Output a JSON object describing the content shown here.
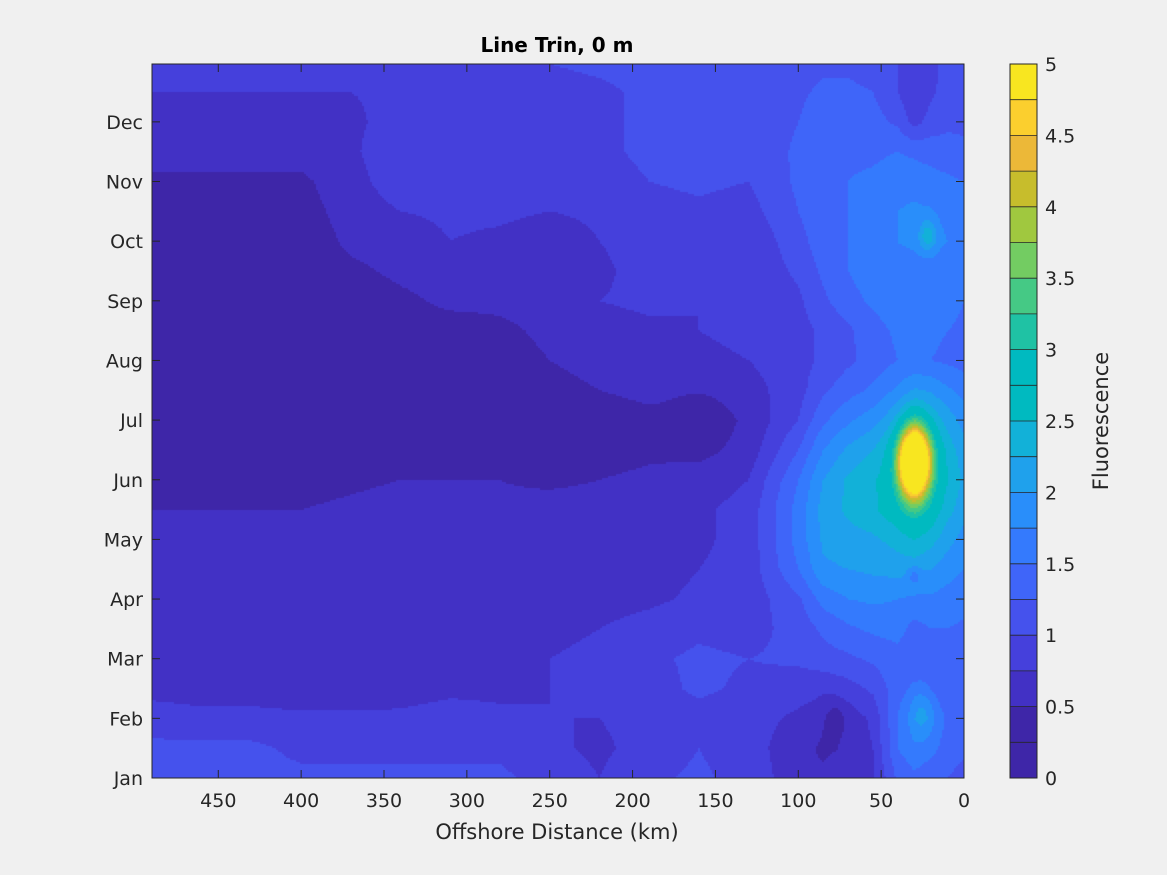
{
  "chart_data": {
    "type": "heatmap",
    "subtype": "filled-contour",
    "title": "Line Trin, 0 m",
    "xlabel": "Offshore Distance (km)",
    "ylabel": "",
    "x_axis": {
      "reversed": true,
      "range": [
        490,
        0
      ],
      "ticks": [
        450,
        400,
        350,
        300,
        250,
        200,
        150,
        100,
        50,
        0
      ],
      "tick_labels": [
        "450",
        "400",
        "350",
        "300",
        "250",
        "200",
        "150",
        "100",
        "50",
        "0"
      ]
    },
    "y_axis": {
      "ticks": [
        1,
        2,
        3,
        4,
        5,
        6,
        7,
        8,
        9,
        10,
        11,
        12
      ],
      "tick_labels": [
        "Jan",
        "Feb",
        "Mar",
        "Apr",
        "May",
        "Jun",
        "Jul",
        "Aug",
        "Sep",
        "Oct",
        "Nov",
        "Dec"
      ],
      "range": [
        1,
        12.97
      ]
    },
    "colorbar": {
      "label": "Fluorescence",
      "range": [
        0,
        5
      ],
      "ticks": [
        0,
        0.5,
        1,
        1.5,
        2,
        2.5,
        3,
        3.5,
        4,
        4.5,
        5
      ],
      "tick_labels": [
        "0",
        "0.5",
        "1",
        "1.5",
        "2",
        "2.5",
        "3",
        "3.5",
        "4",
        "4.5",
        "5"
      ],
      "level_step": 0.25,
      "colormap": "parula",
      "colors": [
        "#3e26a8",
        "#4231c5",
        "#4540dc",
        "#4552ed",
        "#3f65f9",
        "#347afd",
        "#298efa",
        "#1fa1ec",
        "#12b1d8",
        "#00bac0",
        "#1fc2a4",
        "#45c985",
        "#73cc62",
        "#a0c83f",
        "#c7bd2c",
        "#ecb838",
        "#fbcf2e",
        "#f8e620"
      ]
    },
    "grid": false,
    "data": {
      "x": [
        490,
        460,
        430,
        400,
        370,
        340,
        310,
        280,
        250,
        220,
        190,
        160,
        130,
        100,
        85,
        70,
        55,
        40,
        30,
        20,
        10,
        0
      ],
      "y": [
        1,
        1.5,
        2,
        2.5,
        3,
        3.5,
        4,
        4.5,
        5,
        5.5,
        6,
        6.5,
        7,
        7.5,
        8,
        8.5,
        9,
        9.5,
        10,
        10.5,
        11,
        11.5,
        12,
        12.5,
        12.97
      ],
      "base_field_description": "values estimated from contour bands",
      "field": [
        [
          1.05,
          1.05,
          1.05,
          1.05,
          1.05,
          1.05,
          1.05,
          1.05,
          0.9,
          0.75,
          0.95,
          1.05,
          0.9,
          0.6,
          0.55,
          0.65,
          0.7,
          1.3,
          1.45,
          1.35,
          1.25,
          1.15
        ],
        [
          1.05,
          1.05,
          1.05,
          0.95,
          0.95,
          0.95,
          0.95,
          0.95,
          0.8,
          0.7,
          0.85,
          1.0,
          0.85,
          0.6,
          0.45,
          0.55,
          0.75,
          1.5,
          1.65,
          1.55,
          1.4,
          1.3
        ],
        [
          0.9,
          0.85,
          0.85,
          0.8,
          0.8,
          0.8,
          0.85,
          0.8,
          0.75,
          0.75,
          0.85,
          0.9,
          0.85,
          0.7,
          0.6,
          0.6,
          0.8,
          1.5,
          1.7,
          1.6,
          1.45,
          1.35
        ],
        [
          0.65,
          0.6,
          0.6,
          0.6,
          0.6,
          0.65,
          0.7,
          0.7,
          0.75,
          0.8,
          0.9,
          1.05,
          0.95,
          0.85,
          0.8,
          0.9,
          1.05,
          1.4,
          1.45,
          1.35,
          1.3,
          1.25
        ],
        [
          0.6,
          0.6,
          0.6,
          0.6,
          0.6,
          0.6,
          0.6,
          0.65,
          0.75,
          0.8,
          0.95,
          1.05,
          1.0,
          1.05,
          1.15,
          1.2,
          1.3,
          1.4,
          1.3,
          1.35,
          1.35,
          1.3
        ],
        [
          0.6,
          0.6,
          0.6,
          0.6,
          0.6,
          0.6,
          0.55,
          0.6,
          0.7,
          0.75,
          0.85,
          0.95,
          0.9,
          1.1,
          1.3,
          1.45,
          1.55,
          1.6,
          1.4,
          1.5,
          1.5,
          1.45
        ],
        [
          0.6,
          0.6,
          0.6,
          0.6,
          0.6,
          0.6,
          0.55,
          0.55,
          0.6,
          0.65,
          0.7,
          0.8,
          0.85,
          1.2,
          1.6,
          1.75,
          1.8,
          1.75,
          1.7,
          1.7,
          1.65,
          1.6
        ],
        [
          0.6,
          0.6,
          0.6,
          0.6,
          0.6,
          0.6,
          0.6,
          0.6,
          0.6,
          0.6,
          0.65,
          0.75,
          0.85,
          1.5,
          1.95,
          2.0,
          2.05,
          2.1,
          2.1,
          2.0,
          1.85,
          1.75
        ],
        [
          0.6,
          0.6,
          0.6,
          0.6,
          0.6,
          0.6,
          0.6,
          0.6,
          0.6,
          0.6,
          0.6,
          0.7,
          0.85,
          1.6,
          2.05,
          2.15,
          2.2,
          2.35,
          2.5,
          2.35,
          2.1,
          1.9
        ],
        [
          0.5,
          0.5,
          0.5,
          0.5,
          0.55,
          0.6,
          0.55,
          0.55,
          0.6,
          0.6,
          0.6,
          0.7,
          0.85,
          1.6,
          2.1,
          2.3,
          2.45,
          2.7,
          2.9,
          2.7,
          2.35,
          2.1
        ],
        [
          0.4,
          0.4,
          0.4,
          0.4,
          0.45,
          0.5,
          0.5,
          0.5,
          0.45,
          0.5,
          0.55,
          0.6,
          0.75,
          1.5,
          2.0,
          2.3,
          2.45,
          2.75,
          3.0,
          2.85,
          2.5,
          2.2
        ],
        [
          0.35,
          0.35,
          0.35,
          0.35,
          0.35,
          0.35,
          0.35,
          0.35,
          0.35,
          0.4,
          0.45,
          0.45,
          0.6,
          1.25,
          1.75,
          2.05,
          2.25,
          2.6,
          2.9,
          2.75,
          2.4,
          2.1
        ],
        [
          0.35,
          0.35,
          0.35,
          0.35,
          0.35,
          0.35,
          0.35,
          0.35,
          0.35,
          0.4,
          0.45,
          0.4,
          0.55,
          1.0,
          1.45,
          1.7,
          1.9,
          2.2,
          2.5,
          2.4,
          2.15,
          1.9
        ],
        [
          0.35,
          0.35,
          0.35,
          0.35,
          0.35,
          0.35,
          0.35,
          0.35,
          0.4,
          0.5,
          0.55,
          0.6,
          0.65,
          0.9,
          1.2,
          1.4,
          1.55,
          1.8,
          2.0,
          1.95,
          1.8,
          1.65
        ],
        [
          0.35,
          0.35,
          0.35,
          0.35,
          0.35,
          0.35,
          0.35,
          0.4,
          0.5,
          0.6,
          0.7,
          0.7,
          0.75,
          0.9,
          1.05,
          1.2,
          1.35,
          1.5,
          1.55,
          1.5,
          1.45,
          1.4
        ],
        [
          0.35,
          0.35,
          0.35,
          0.35,
          0.35,
          0.4,
          0.4,
          0.45,
          0.55,
          0.65,
          0.7,
          0.75,
          0.8,
          0.9,
          1.05,
          1.2,
          1.4,
          1.55,
          1.55,
          1.55,
          1.5,
          1.45
        ],
        [
          0.35,
          0.35,
          0.35,
          0.35,
          0.35,
          0.45,
          0.55,
          0.55,
          0.6,
          0.75,
          0.8,
          0.75,
          0.8,
          0.95,
          1.2,
          1.4,
          1.55,
          1.65,
          1.6,
          1.65,
          1.6,
          1.5
        ],
        [
          0.35,
          0.35,
          0.35,
          0.35,
          0.45,
          0.55,
          0.6,
          0.55,
          0.55,
          0.7,
          0.85,
          0.8,
          0.8,
          1.05,
          1.3,
          1.5,
          1.65,
          1.7,
          1.6,
          1.6,
          1.55,
          1.5
        ],
        [
          0.35,
          0.35,
          0.35,
          0.35,
          0.55,
          0.6,
          0.75,
          0.7,
          0.6,
          0.75,
          0.85,
          0.85,
          0.8,
          1.15,
          1.4,
          1.5,
          1.6,
          1.75,
          1.8,
          1.85,
          1.75,
          1.6
        ],
        [
          0.4,
          0.4,
          0.4,
          0.4,
          0.6,
          0.75,
          0.8,
          0.8,
          0.75,
          0.8,
          0.9,
          0.95,
          0.9,
          1.25,
          1.45,
          1.5,
          1.6,
          1.75,
          1.8,
          1.75,
          1.65,
          1.55
        ],
        [
          0.45,
          0.45,
          0.45,
          0.45,
          0.65,
          0.9,
          0.95,
          0.9,
          0.85,
          0.9,
          1.0,
          1.05,
          1.0,
          1.3,
          1.5,
          1.5,
          1.55,
          1.65,
          1.65,
          1.6,
          1.55,
          1.5
        ],
        [
          0.6,
          0.6,
          0.6,
          0.6,
          0.7,
          0.95,
          1.0,
          1.0,
          0.95,
          0.95,
          1.05,
          1.1,
          1.05,
          1.3,
          1.45,
          1.45,
          1.45,
          1.5,
          1.45,
          1.4,
          1.35,
          1.3
        ],
        [
          0.6,
          0.6,
          0.6,
          0.6,
          0.7,
          0.85,
          0.9,
          0.9,
          0.9,
          0.95,
          1.05,
          1.1,
          1.05,
          1.25,
          1.4,
          1.4,
          1.35,
          1.2,
          0.9,
          1.1,
          1.2,
          1.2
        ],
        [
          0.75,
          0.75,
          0.75,
          0.75,
          0.75,
          0.8,
          0.85,
          0.85,
          0.9,
          0.95,
          1.05,
          1.1,
          1.05,
          1.2,
          1.3,
          1.3,
          1.25,
          1.0,
          0.75,
          0.95,
          1.1,
          1.15
        ],
        [
          0.8,
          0.8,
          0.8,
          0.85,
          0.9,
          0.95,
          0.95,
          0.95,
          1.0,
          1.05,
          1.1,
          1.1,
          1.05,
          1.15,
          1.2,
          1.2,
          1.15,
          1.0,
          0.8,
          0.95,
          1.05,
          1.1
        ]
      ],
      "features": [
        {
          "description": "bloom maximum",
          "x": 30,
          "y": 6.3,
          "peak": 4.7,
          "x_spread": 9,
          "y_spread": 0.55
        },
        {
          "description": "Oct local maximum",
          "x": 22,
          "y": 10.1,
          "peak": 0.6,
          "x_spread": 5,
          "y_spread": 0.25
        },
        {
          "description": "Feb local maximum",
          "x": 25,
          "y": 2.1,
          "peak": 0.45,
          "x_spread": 8,
          "y_spread": 0.45
        },
        {
          "description": "Jul local minimum",
          "x": 160,
          "y": 7.0,
          "peak": -0.25,
          "x_spread": 14,
          "y_spread": 0.4
        },
        {
          "description": "Apr local minimum",
          "x": 30,
          "y": 4.4,
          "peak": -0.35,
          "x_spread": 4,
          "y_spread": 0.15
        },
        {
          "description": "Feb local minimum",
          "x": 78,
          "y": 2.0,
          "peak": -0.25,
          "x_spread": 6,
          "y_spread": 0.3
        }
      ]
    }
  }
}
